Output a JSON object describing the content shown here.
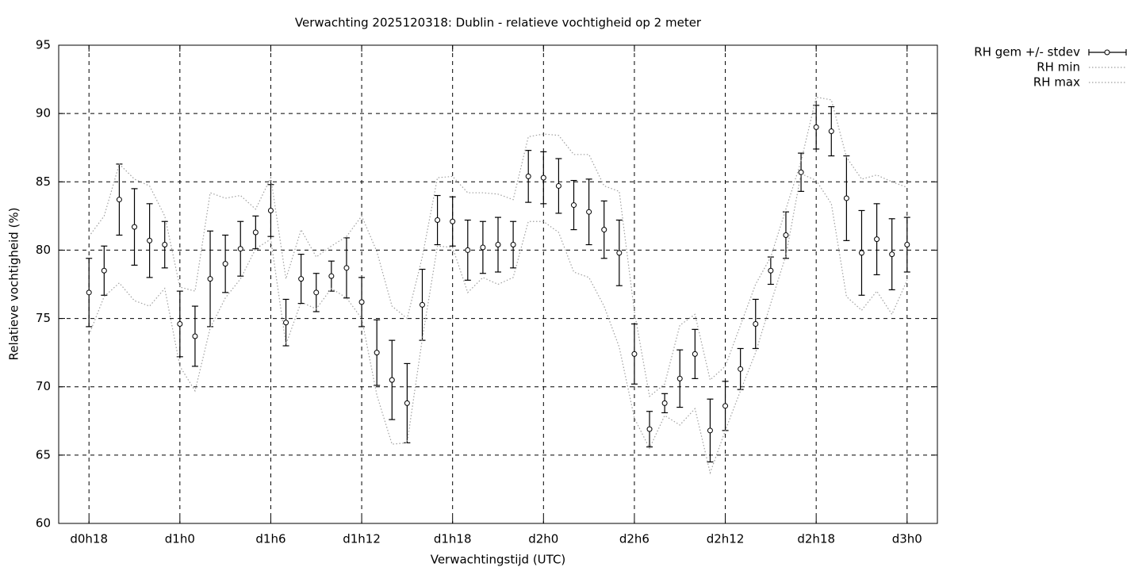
{
  "chart_data": {
    "type": "errorbar",
    "title": "Verwachting 2025120318: Dublin - relatieve vochtigheid op 2 meter",
    "xlabel": "Verwachtingstijd (UTC)",
    "ylabel": "Relatieve vochtigheid (%)",
    "x": [
      18,
      19,
      20,
      21,
      22,
      23,
      24,
      25,
      26,
      27,
      28,
      29,
      30,
      31,
      32,
      33,
      34,
      35,
      36,
      37,
      38,
      39,
      40,
      41,
      42,
      43,
      44,
      45,
      46,
      47,
      48,
      49,
      50,
      51,
      52,
      53,
      54,
      55,
      56,
      57,
      58,
      59,
      60,
      61,
      62,
      63,
      64,
      65,
      66,
      67,
      68,
      69,
      70,
      71,
      72
    ],
    "xlim": [
      16,
      74
    ],
    "xticks": [
      {
        "value": 18,
        "label": "d0h18"
      },
      {
        "value": 24,
        "label": "d1h0"
      },
      {
        "value": 30,
        "label": "d1h6"
      },
      {
        "value": 36,
        "label": "d1h12"
      },
      {
        "value": 42,
        "label": "d1h18"
      },
      {
        "value": 48,
        "label": "d2h0"
      },
      {
        "value": 54,
        "label": "d2h6"
      },
      {
        "value": 60,
        "label": "d2h12"
      },
      {
        "value": 66,
        "label": "d2h18"
      },
      {
        "value": 72,
        "label": "d3h0"
      }
    ],
    "ylim": [
      60,
      95
    ],
    "yticks": [
      60,
      65,
      70,
      75,
      80,
      85,
      90,
      95
    ],
    "grid": true,
    "legend": "outside-top-right",
    "series": [
      {
        "name": "RH gem +/- stdev",
        "color": "#000000",
        "values": [
          76.9,
          78.5,
          83.7,
          81.7,
          80.7,
          80.4,
          74.6,
          73.7,
          77.9,
          79.0,
          80.1,
          81.3,
          82.9,
          74.7,
          77.9,
          76.9,
          78.1,
          78.7,
          76.2,
          72.5,
          70.5,
          68.8,
          76.0,
          82.2,
          82.1,
          80.0,
          80.2,
          80.4,
          80.4,
          85.4,
          85.3,
          84.7,
          83.3,
          82.8,
          81.5,
          79.8,
          72.4,
          66.9,
          68.8,
          70.6,
          72.4,
          66.8,
          68.6,
          71.3,
          74.6,
          78.5,
          81.1,
          85.7,
          89.0,
          88.7,
          83.8,
          79.8,
          80.8,
          79.7,
          80.4
        ],
        "errors": [
          2.5,
          1.8,
          2.6,
          2.8,
          2.7,
          1.7,
          2.4,
          2.2,
          3.5,
          2.1,
          2.0,
          1.2,
          1.9,
          1.7,
          1.8,
          1.4,
          1.1,
          2.2,
          1.8,
          2.4,
          2.9,
          2.9,
          2.6,
          1.8,
          1.8,
          2.2,
          1.9,
          2.0,
          1.7,
          1.9,
          1.9,
          2.0,
          1.8,
          2.4,
          2.1,
          2.4,
          2.2,
          1.3,
          0.7,
          2.1,
          1.8,
          2.3,
          1.8,
          1.5,
          1.8,
          1.0,
          1.7,
          1.4,
          1.6,
          1.8,
          3.1,
          3.1,
          2.6,
          2.6,
          2.0
        ]
      },
      {
        "name": "RH min",
        "color": "#a0a0a0",
        "values": [
          73.8,
          76.6,
          77.6,
          76.3,
          75.9,
          77.2,
          71.5,
          69.7,
          74.3,
          76.5,
          77.9,
          80.1,
          80.8,
          73.1,
          76.2,
          75.7,
          77.2,
          76.5,
          75.0,
          69.4,
          65.8,
          65.9,
          73.5,
          80.3,
          80.2,
          76.9,
          78.0,
          77.5,
          78.0,
          82.1,
          82.1,
          81.3,
          78.4,
          78.0,
          75.9,
          72.9,
          67.7,
          65.5,
          67.9,
          67.2,
          68.4,
          63.7,
          66.8,
          69.7,
          72.5,
          76.1,
          79.6,
          85.6,
          85.1,
          83.4,
          76.6,
          75.6,
          77.0,
          75.3,
          77.8
        ]
      },
      {
        "name": "RH max",
        "color": "#a0a0a0",
        "values": [
          81.0,
          82.5,
          86.3,
          85.2,
          84.7,
          82.5,
          77.3,
          77.0,
          84.2,
          83.8,
          84.0,
          83.0,
          85.3,
          77.9,
          81.5,
          79.5,
          80.3,
          81.0,
          82.5,
          79.9,
          75.9,
          75.0,
          79.5,
          85.3,
          85.4,
          84.2,
          84.2,
          84.1,
          83.7,
          88.3,
          88.5,
          88.4,
          87.0,
          87.0,
          84.7,
          84.3,
          75.5,
          69.3,
          70.2,
          74.5,
          75.3,
          70.5,
          71.5,
          74.5,
          77.5,
          79.5,
          83.0,
          86.5,
          91.2,
          91.0,
          86.8,
          85.2,
          85.5,
          85.0,
          84.6
        ]
      }
    ]
  }
}
